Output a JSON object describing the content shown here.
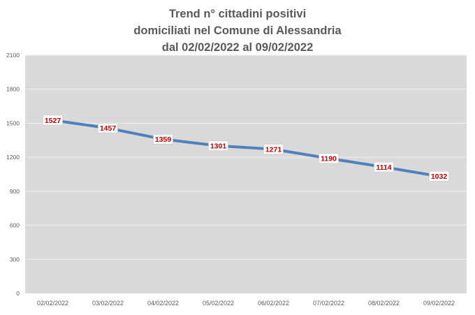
{
  "chart_data": {
    "type": "line",
    "title": [
      "Trend n° cittadini positivi",
      "domiciliati nel Comune di Alessandria",
      "dal 02/02/2022 al 09/02/2022"
    ],
    "categories": [
      "02/02/2022",
      "03/02/2022",
      "04/02/2022",
      "05/02/2022",
      "06/02/2022",
      "07/02/2022",
      "08/02/2022",
      "09/02/2022"
    ],
    "series": [
      {
        "values": [
          1527,
          1457,
          1359,
          1301,
          1271,
          1190,
          1114,
          1032
        ]
      }
    ],
    "ylim": [
      0,
      2100
    ],
    "yticks": [
      0,
      300,
      600,
      900,
      1200,
      1500,
      1800,
      2100
    ],
    "ytick_labels": [
      "0",
      "300",
      "600",
      "900",
      "1200",
      "1500",
      "1800",
      "2100"
    ],
    "xlabel": "",
    "ylabel": "",
    "grid": true,
    "legend": "none",
    "colors": {
      "plot_background": "#d9d9d9",
      "line": "#4f81bd",
      "data_label_text": "#c00000",
      "data_label_background": "#ffffff",
      "gridline": "#f2f2f2",
      "title": "#595959"
    }
  }
}
